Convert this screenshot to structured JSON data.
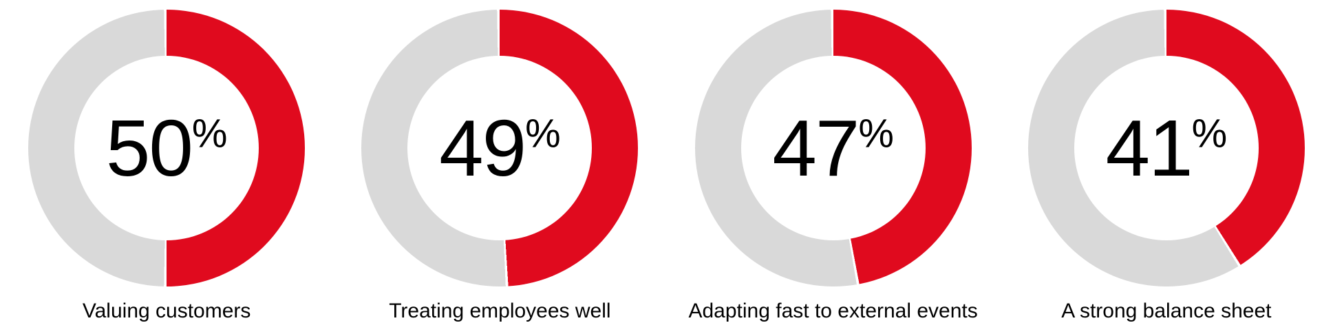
{
  "page": {
    "background_color": "#ffffff",
    "text_color": "#000000"
  },
  "chart_data": {
    "type": "pie",
    "variant": "donut_small_multiples",
    "count": 4,
    "unit": "%",
    "series": [
      {
        "label": "Valuing customers",
        "value": 50
      },
      {
        "label": "Treating employees well",
        "value": 49
      },
      {
        "label": "Adapting fast to external events",
        "value": 47
      },
      {
        "label": "A strong balance sheet",
        "value": 41
      }
    ],
    "colors": {
      "filled_arc": "#E00A1E",
      "remainder_arc": "#D9D9D9",
      "segment_gap": "#ffffff",
      "center_number": "#000000",
      "label_text": "#000000"
    },
    "layout": {
      "start_angle": "top",
      "direction": "clockwise",
      "center_value_label": true,
      "value_label_format": "{value}%",
      "category_label_position": "below",
      "legend": "none",
      "grid": "off"
    }
  }
}
